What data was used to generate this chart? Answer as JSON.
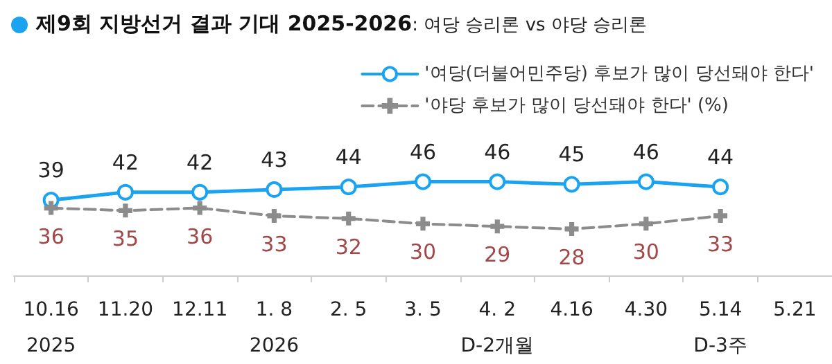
{
  "chart_data": {
    "type": "line",
    "title": "제9회 지방선거 결과 기대 2025-2026: 여당 승리론 vs 야당 승리론",
    "categories": [
      "10.16\n2025",
      "11.20",
      "12.11",
      "1. 8\n2026",
      "2. 5",
      "3. 5",
      "4. 2\nD-2개월",
      "4.16",
      "4.30",
      "5.14\nD-3주",
      "5.21"
    ],
    "series": [
      {
        "name": "'여당(더불어민주당) 후보가 많이 당선돼야 한다'",
        "color": "#1aa3f0",
        "marker": "circle",
        "line_style": "solid",
        "values": [
          39,
          42,
          42,
          43,
          44,
          46,
          46,
          45,
          46,
          44,
          null
        ]
      },
      {
        "name": "'야당 후보가 많이 당선돼야 한다' (%)",
        "color": "#8c8c8c",
        "marker": "cross",
        "line_style": "dashed",
        "values": [
          36,
          35,
          36,
          33,
          32,
          30,
          29,
          28,
          30,
          33,
          null
        ]
      }
    ],
    "data_labels": true,
    "legend": "top right",
    "grid": false
  }
}
